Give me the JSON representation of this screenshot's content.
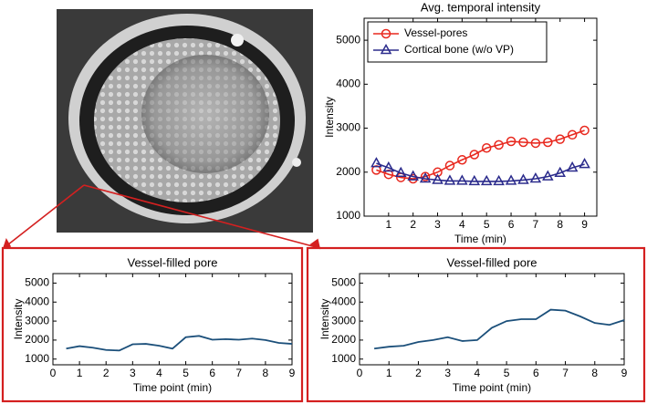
{
  "chart_data": [
    {
      "type": "line",
      "title": "Avg. temporal intensity",
      "xlabel": "Time (min)",
      "ylabel": "Intensity",
      "x": [
        0.5,
        1,
        1.5,
        2,
        2.5,
        3,
        3.5,
        4,
        4.5,
        5,
        5.5,
        6,
        6.5,
        7,
        7.5,
        8,
        8.5,
        9
      ],
      "xlim": [
        0,
        9.5
      ],
      "xticks": [
        1,
        2,
        3,
        4,
        5,
        6,
        7,
        8,
        9
      ],
      "ylim": [
        1000,
        5500
      ],
      "yticks": [
        1000,
        2000,
        3000,
        4000,
        5000
      ],
      "legend": "upper left",
      "series": [
        {
          "name": "Vessel-pores",
          "color": "#e8281e",
          "marker": "circle",
          "values": [
            2050,
            1950,
            1880,
            1850,
            1900,
            2000,
            2150,
            2280,
            2400,
            2550,
            2620,
            2700,
            2680,
            2660,
            2680,
            2750,
            2850,
            2950
          ]
        },
        {
          "name": "Cortical bone (w/o VP)",
          "color": "#2b2b8c",
          "marker": "triangle",
          "values": [
            2200,
            2100,
            1980,
            1900,
            1850,
            1820,
            1800,
            1800,
            1790,
            1790,
            1790,
            1800,
            1820,
            1850,
            1900,
            1980,
            2100,
            2180
          ]
        }
      ]
    },
    {
      "type": "line",
      "title": "Vessel-filled pore",
      "xlabel": "Time point (min)",
      "ylabel": "Intensity",
      "x": [
        0.5,
        1,
        1.5,
        2,
        2.5,
        3,
        3.5,
        4,
        4.5,
        5,
        5.5,
        6,
        6.5,
        7,
        7.5,
        8,
        8.5,
        9
      ],
      "xlim": [
        0,
        9
      ],
      "xticks": [
        0,
        1,
        2,
        3,
        4,
        5,
        6,
        7,
        8,
        9
      ],
      "ylim": [
        700,
        5500
      ],
      "yticks": [
        1000,
        2000,
        3000,
        4000,
        5000
      ],
      "series": [
        {
          "color": "#1b4f7a",
          "values": [
            1550,
            1680,
            1600,
            1480,
            1450,
            1780,
            1800,
            1700,
            1550,
            2150,
            2220,
            2020,
            2050,
            2020,
            2080,
            2000,
            1850,
            1800
          ]
        }
      ]
    },
    {
      "type": "line",
      "title": "Vessel-filled pore",
      "xlabel": "Time point (min)",
      "ylabel": "Intensity",
      "x": [
        0.5,
        1,
        1.5,
        2,
        2.5,
        3,
        3.5,
        4,
        4.5,
        5,
        5.5,
        6,
        6.5,
        7,
        7.5,
        8,
        8.5,
        9
      ],
      "xlim": [
        0,
        9
      ],
      "xticks": [
        0,
        1,
        2,
        3,
        4,
        5,
        6,
        7,
        8,
        9
      ],
      "ylim": [
        700,
        5500
      ],
      "yticks": [
        1000,
        2000,
        3000,
        4000,
        5000
      ],
      "series": [
        {
          "color": "#1b4f7a",
          "values": [
            1550,
            1650,
            1700,
            1900,
            2000,
            2150,
            1950,
            2000,
            2650,
            3000,
            3100,
            3100,
            3600,
            3550,
            3250,
            2900,
            2800,
            3050
          ]
        }
      ]
    }
  ]
}
